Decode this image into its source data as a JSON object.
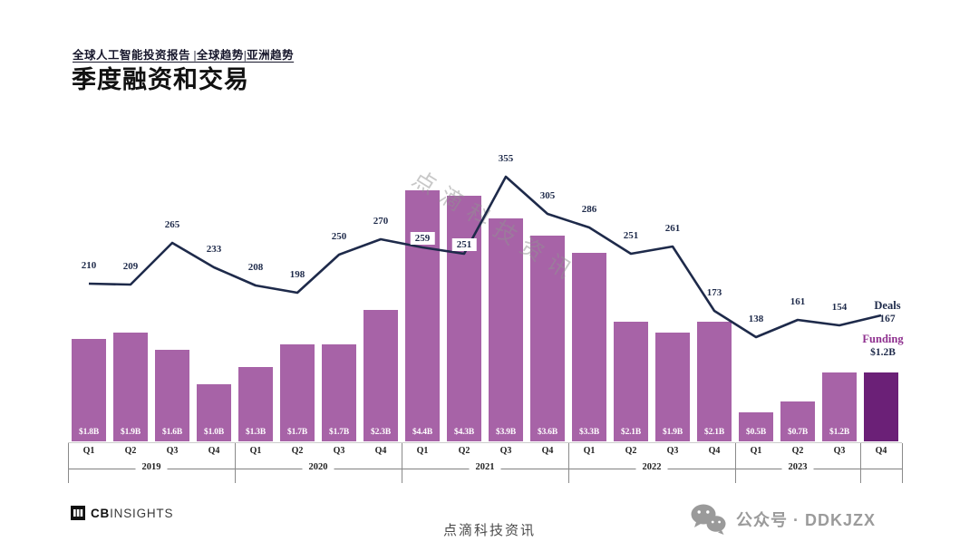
{
  "header": {
    "tagline": "全球人工智能投资报告 |全球趋势|亚洲趋势",
    "title": "季度融资和交易"
  },
  "chart_data": {
    "type": "bar+line",
    "title": "季度融资和交易",
    "quarters": [
      "Q1",
      "Q2",
      "Q3",
      "Q4",
      "Q1",
      "Q2",
      "Q3",
      "Q4",
      "Q1",
      "Q2",
      "Q3",
      "Q4",
      "Q1",
      "Q2",
      "Q3",
      "Q4",
      "Q1",
      "Q2",
      "Q3",
      "Q4"
    ],
    "year_groups": [
      {
        "label": "2019",
        "start": 0,
        "end": 3
      },
      {
        "label": "2020",
        "start": 4,
        "end": 7
      },
      {
        "label": "2021",
        "start": 8,
        "end": 11
      },
      {
        "label": "2022",
        "start": 12,
        "end": 15
      },
      {
        "label": "2023",
        "start": 16,
        "end": 18
      },
      {
        "label": "",
        "start": 19,
        "end": 19
      }
    ],
    "series": [
      {
        "name": "Funding",
        "unit": "$B",
        "values": [
          1.8,
          1.9,
          1.6,
          1.0,
          1.3,
          1.7,
          1.7,
          2.3,
          4.4,
          4.3,
          3.9,
          3.6,
          3.3,
          2.1,
          1.9,
          2.1,
          0.5,
          0.7,
          1.2,
          1.2
        ],
        "labels": [
          "$1.8B",
          "$1.9B",
          "$1.6B",
          "$1.0B",
          "$1.3B",
          "$1.7B",
          "$1.7B",
          "$2.3B",
          "$4.4B",
          "$4.3B",
          "$3.9B",
          "$3.6B",
          "$3.3B",
          "$2.1B",
          "$1.9B",
          "$2.1B",
          "$0.5B",
          "$0.7B",
          "$1.2B",
          ""
        ]
      },
      {
        "name": "Deals",
        "values": [
          210,
          209,
          265,
          233,
          208,
          198,
          250,
          270,
          259,
          251,
          355,
          305,
          286,
          251,
          261,
          173,
          138,
          161,
          154,
          167
        ],
        "boxed_labels": [
          8,
          9
        ],
        "hidden_labels": [
          19
        ]
      }
    ],
    "highlight_index": 19,
    "annotations": {
      "deals_title": "Deals",
      "deals_value": "167",
      "funding_title": "Funding",
      "funding_value": "$1.2B"
    },
    "colors": {
      "bar": "#a763a7",
      "bar_highlight": "#6b2077",
      "line": "#1e2a4a",
      "label": "#1e2a4a",
      "funding_text": "#8e2f8e"
    },
    "legend_position": "inline-right",
    "grid": false
  },
  "watermark": {
    "diagonal": "点滴科技资讯",
    "footer_center": "点滴科技资讯"
  },
  "footer": {
    "logo_bold": "CB",
    "logo_rest": "INSIGHTS",
    "wechat_label": "公众号 · DDKJZX"
  }
}
